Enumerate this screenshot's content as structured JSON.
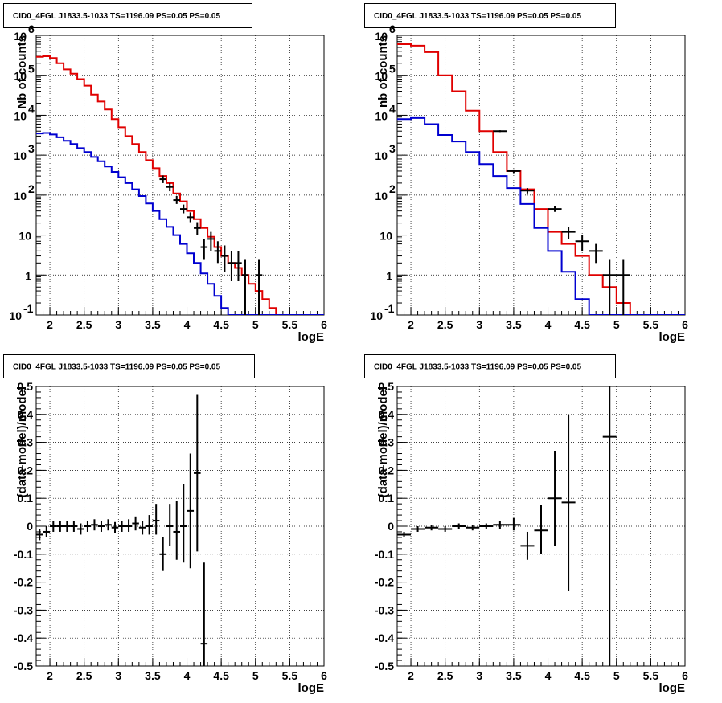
{
  "chart_data": [
    {
      "type": "step",
      "title": "CID0_4FGL J1833.5-1033 TS=1196.09 PS=0.05 PS=0.05",
      "xlabel": "logE",
      "ylabel": "Nb of counts",
      "xlim": [
        1.8,
        6
      ],
      "ylim": [
        0.1,
        1000000
      ],
      "yscale": "log",
      "grid": true,
      "xticks": [
        "2",
        "2.5",
        "3",
        "3.5",
        "4",
        "4.5",
        "5",
        "5.5",
        "6"
      ],
      "yticks": [
        "10^-1",
        "1",
        "10",
        "10^2",
        "10^3",
        "10^4",
        "10^5",
        "10^6"
      ],
      "bin_edges": [
        1.8,
        1.9,
        2.0,
        2.1,
        2.2,
        2.3,
        2.4,
        2.5,
        2.6,
        2.7,
        2.8,
        2.9,
        3.0,
        3.1,
        3.2,
        3.3,
        3.4,
        3.5,
        3.6,
        3.7,
        3.8,
        3.9,
        4.0,
        4.1,
        4.2,
        4.3,
        4.4,
        4.5,
        4.6,
        4.7,
        4.8,
        4.9,
        5.0,
        5.1,
        5.2,
        5.3,
        5.4,
        5.5,
        5.6,
        5.7,
        5.8,
        5.9,
        6.0
      ],
      "series": [
        {
          "color": "#e00000",
          "values": [
            290000,
            300000,
            270000,
            200000,
            140000,
            110000,
            80000,
            55000,
            33000,
            22000,
            14000,
            8000,
            5000,
            3000,
            1900,
            1200,
            750,
            470,
            300,
            200,
            110,
            70,
            40,
            25,
            15,
            9,
            5,
            3,
            2,
            1.5,
            1,
            0.6,
            0.4,
            0.25,
            0.15,
            0.1,
            0.1,
            0.1,
            0.1,
            0.1,
            0.1,
            0.1
          ]
        },
        {
          "color": "#0000d0",
          "values": [
            3500,
            3600,
            3300,
            2800,
            2300,
            1900,
            1500,
            1200,
            900,
            700,
            520,
            380,
            280,
            200,
            140,
            95,
            62,
            40,
            25,
            16,
            10,
            6,
            3.5,
            2,
            1.1,
            0.6,
            0.3,
            0.15,
            0.1,
            0.1,
            0.1,
            0.1,
            0.1,
            0.1,
            0.1,
            0.1,
            0.1,
            0.1,
            0.1,
            0.1,
            0.1,
            0.1
          ]
        }
      ],
      "points": [
        {
          "x": 3.65,
          "y": 250,
          "yl": 200,
          "yh": 310
        },
        {
          "x": 3.75,
          "y": 160,
          "yl": 125,
          "yh": 200
        },
        {
          "x": 3.85,
          "y": 75,
          "yl": 60,
          "yh": 95
        },
        {
          "x": 3.95,
          "y": 45,
          "yl": 35,
          "yh": 58
        },
        {
          "x": 4.05,
          "y": 28,
          "yl": 21,
          "yh": 37
        },
        {
          "x": 4.15,
          "y": 15,
          "yl": 10,
          "yh": 21
        },
        {
          "x": 4.25,
          "y": 5,
          "yl": 2.5,
          "yh": 8
        },
        {
          "x": 4.35,
          "y": 8,
          "yl": 4,
          "yh": 12
        },
        {
          "x": 4.45,
          "y": 4,
          "yl": 2,
          "yh": 7
        },
        {
          "x": 4.55,
          "y": 3,
          "yl": 1.2,
          "yh": 5.5
        },
        {
          "x": 4.65,
          "y": 2,
          "yl": 0.7,
          "yh": 4
        },
        {
          "x": 4.75,
          "y": 2,
          "yl": 0.7,
          "yh": 4
        },
        {
          "x": 4.85,
          "y": 1,
          "yl": 0.1,
          "yh": 2.5
        },
        {
          "x": 5.05,
          "y": 1,
          "yl": 0.1,
          "yh": 2.5
        }
      ]
    },
    {
      "type": "step",
      "title": "CID0_4FGL J1833.5-1033 TS=1196.09 PS=0.05 PS=0.05",
      "xlabel": "logE",
      "ylabel": "nb of counts",
      "xlim": [
        1.8,
        6
      ],
      "ylim": [
        0.1,
        1000000
      ],
      "yscale": "log",
      "grid": true,
      "xticks": [
        "2",
        "2.5",
        "3",
        "3.5",
        "4",
        "4.5",
        "5",
        "5.5",
        "6"
      ],
      "yticks": [
        "10^-1",
        "1",
        "10",
        "10^2",
        "10^3",
        "10^4",
        "10^5",
        "10^6"
      ],
      "bin_edges": [
        1.8,
        2.0,
        2.2,
        2.4,
        2.6,
        2.8,
        3.0,
        3.2,
        3.4,
        3.6,
        3.8,
        4.0,
        4.2,
        4.4,
        4.6,
        4.8,
        5.0,
        5.2,
        5.4,
        5.6,
        5.8,
        6.0
      ],
      "series": [
        {
          "color": "#e00000",
          "values": [
            600000,
            550000,
            380000,
            100000,
            40000,
            13000,
            4000,
            1200,
            400,
            140,
            45,
            12,
            6,
            3,
            1,
            0.5,
            0.2,
            0.1,
            0.1,
            0.1,
            0.1
          ]
        },
        {
          "color": "#0000d0",
          "values": [
            8000,
            8500,
            6000,
            3200,
            2200,
            1200,
            600,
            300,
            150,
            60,
            15,
            4,
            1.2,
            0.25,
            0.1,
            0.1,
            0.1,
            0.1,
            0.1,
            0.1,
            0.1
          ]
        }
      ],
      "points": [
        {
          "x": 3.3,
          "y": 4000,
          "yl": 3800,
          "yh": 4200
        },
        {
          "x": 3.5,
          "y": 400,
          "yl": 360,
          "yh": 440
        },
        {
          "x": 3.7,
          "y": 130,
          "yl": 110,
          "yh": 150
        },
        {
          "x": 4.1,
          "y": 45,
          "yl": 38,
          "yh": 52
        },
        {
          "x": 4.3,
          "y": 12,
          "yl": 8,
          "yh": 16
        },
        {
          "x": 4.5,
          "y": 7,
          "yl": 4,
          "yh": 10
        },
        {
          "x": 4.7,
          "y": 4,
          "yl": 2,
          "yh": 6
        },
        {
          "x": 4.9,
          "y": 1,
          "yl": 0.1,
          "yh": 2.5
        },
        {
          "x": 5.1,
          "y": 1,
          "yl": 0.1,
          "yh": 2.5
        }
      ]
    },
    {
      "type": "scatter",
      "title": "CID0_4FGL J1833.5-1033 TS=1196.09 PS=0.05 PS=0.05",
      "xlabel": "logE",
      "ylabel": "(data-model)/model",
      "xlim": [
        1.8,
        6
      ],
      "ylim": [
        -0.5,
        0.5
      ],
      "grid": true,
      "xticks": [
        "2",
        "2.5",
        "3",
        "3.5",
        "4",
        "4.5",
        "5",
        "5.5",
        "6"
      ],
      "yticks": [
        "-0.5",
        "-0.4",
        "-0.3",
        "-0.2",
        "-0.1",
        "0",
        "0.1",
        "0.2",
        "0.3",
        "0.4",
        "0.5"
      ],
      "points": [
        {
          "x": 1.85,
          "y": -0.03,
          "xerr": 0.05,
          "yl": -0.05,
          "yh": -0.01
        },
        {
          "x": 1.95,
          "y": -0.02,
          "xerr": 0.05,
          "yl": -0.04,
          "yh": 0.0
        },
        {
          "x": 2.05,
          "y": 0.0,
          "xerr": 0.05,
          "yl": -0.02,
          "yh": 0.02
        },
        {
          "x": 2.15,
          "y": 0.0,
          "xerr": 0.05,
          "yl": -0.02,
          "yh": 0.02
        },
        {
          "x": 2.25,
          "y": 0.0,
          "xerr": 0.05,
          "yl": -0.02,
          "yh": 0.02
        },
        {
          "x": 2.35,
          "y": 0.0,
          "xerr": 0.05,
          "yl": -0.02,
          "yh": 0.02
        },
        {
          "x": 2.45,
          "y": -0.01,
          "xerr": 0.05,
          "yl": -0.03,
          "yh": 0.01
        },
        {
          "x": 2.55,
          "y": 0.0,
          "xerr": 0.05,
          "yl": -0.02,
          "yh": 0.02
        },
        {
          "x": 2.65,
          "y": 0.005,
          "xerr": 0.05,
          "yl": -0.015,
          "yh": 0.025
        },
        {
          "x": 2.75,
          "y": 0.0,
          "xerr": 0.05,
          "yl": -0.02,
          "yh": 0.02
        },
        {
          "x": 2.85,
          "y": 0.005,
          "xerr": 0.05,
          "yl": -0.015,
          "yh": 0.025
        },
        {
          "x": 2.95,
          "y": -0.005,
          "xerr": 0.05,
          "yl": -0.025,
          "yh": 0.015
        },
        {
          "x": 3.05,
          "y": 0.0,
          "xerr": 0.05,
          "yl": -0.02,
          "yh": 0.02
        },
        {
          "x": 3.15,
          "y": 0.0,
          "xerr": 0.05,
          "yl": -0.02,
          "yh": 0.025
        },
        {
          "x": 3.25,
          "y": 0.01,
          "xerr": 0.05,
          "yl": -0.015,
          "yh": 0.035
        },
        {
          "x": 3.35,
          "y": -0.005,
          "xerr": 0.05,
          "yl": -0.03,
          "yh": 0.02
        },
        {
          "x": 3.45,
          "y": 0.0,
          "xerr": 0.05,
          "yl": -0.03,
          "yh": 0.04
        },
        {
          "x": 3.55,
          "y": 0.02,
          "xerr": 0.05,
          "yl": -0.03,
          "yh": 0.08
        },
        {
          "x": 3.65,
          "y": -0.1,
          "xerr": 0.05,
          "yl": -0.16,
          "yh": -0.04
        },
        {
          "x": 3.75,
          "y": 0.0,
          "xerr": 0.05,
          "yl": -0.07,
          "yh": 0.08
        },
        {
          "x": 3.85,
          "y": -0.02,
          "xerr": 0.05,
          "yl": -0.12,
          "yh": 0.09
        },
        {
          "x": 3.95,
          "y": 0.0,
          "xerr": 0.05,
          "yl": -0.13,
          "yh": 0.15
        },
        {
          "x": 4.05,
          "y": 0.055,
          "xerr": 0.05,
          "yl": -0.15,
          "yh": 0.26
        },
        {
          "x": 4.15,
          "y": 0.19,
          "xerr": 0.05,
          "yl": -0.09,
          "yh": 0.47
        },
        {
          "x": 4.25,
          "y": -0.42,
          "xerr": 0.05,
          "yl": -0.71,
          "yh": -0.13
        }
      ]
    },
    {
      "type": "scatter",
      "title": "CID0_4FGL J1833.5-1033 TS=1196.09 PS=0.05 PS=0.05",
      "xlabel": "logE",
      "ylabel": "(data-model)/model",
      "xlim": [
        1.8,
        6
      ],
      "ylim": [
        -0.5,
        0.5
      ],
      "grid": true,
      "xticks": [
        "2",
        "2.5",
        "3",
        "3.5",
        "4",
        "4.5",
        "5",
        "5.5",
        "6"
      ],
      "yticks": [
        "-0.5",
        "-0.4",
        "-0.3",
        "-0.2",
        "-0.1",
        "0",
        "0.1",
        "0.2",
        "0.3",
        "0.4",
        "0.5"
      ],
      "points": [
        {
          "x": 1.9,
          "y": -0.03,
          "xerr": 0.1,
          "yl": -0.04,
          "yh": -0.02
        },
        {
          "x": 2.1,
          "y": -0.01,
          "xerr": 0.1,
          "yl": -0.02,
          "yh": 0.0
        },
        {
          "x": 2.3,
          "y": -0.005,
          "xerr": 0.1,
          "yl": -0.015,
          "yh": 0.005
        },
        {
          "x": 2.5,
          "y": -0.01,
          "xerr": 0.1,
          "yl": -0.02,
          "yh": 0.0
        },
        {
          "x": 2.7,
          "y": 0.0,
          "xerr": 0.1,
          "yl": -0.01,
          "yh": 0.01
        },
        {
          "x": 2.9,
          "y": -0.005,
          "xerr": 0.1,
          "yl": -0.015,
          "yh": 0.005
        },
        {
          "x": 3.1,
          "y": 0.0,
          "xerr": 0.1,
          "yl": -0.01,
          "yh": 0.01
        },
        {
          "x": 3.3,
          "y": 0.005,
          "xerr": 0.1,
          "yl": -0.01,
          "yh": 0.02
        },
        {
          "x": 3.5,
          "y": 0.005,
          "xerr": 0.1,
          "yl": -0.015,
          "yh": 0.03
        },
        {
          "x": 3.7,
          "y": -0.07,
          "xerr": 0.1,
          "yl": -0.12,
          "yh": -0.02
        },
        {
          "x": 3.9,
          "y": -0.015,
          "xerr": 0.1,
          "yl": -0.1,
          "yh": 0.075
        },
        {
          "x": 4.1,
          "y": 0.1,
          "xerr": 0.1,
          "yl": -0.07,
          "yh": 0.27
        },
        {
          "x": 4.3,
          "y": 0.085,
          "xerr": 0.1,
          "yl": -0.23,
          "yh": 0.4
        },
        {
          "x": 4.9,
          "y": 0.32,
          "xerr": 0.1,
          "yl": -0.5,
          "yh": 0.5
        }
      ]
    }
  ]
}
